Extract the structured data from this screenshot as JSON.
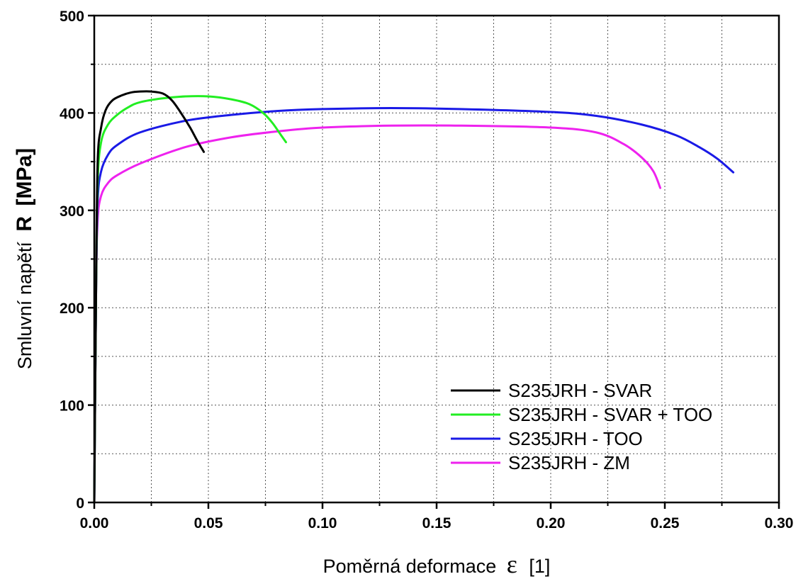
{
  "chart_data": {
    "type": "line",
    "xlabel": "Poměrná deformace",
    "xlabel_symbol": "ε",
    "xlabel_unit": "[1]",
    "ylabel": "Smluvní napětí",
    "ylabel_symbol": "R",
    "ylabel_unit": "[MPa]",
    "xlim": [
      0,
      0.3
    ],
    "ylim": [
      0,
      500
    ],
    "x_ticks": [
      "0.00",
      "0.05",
      "0.10",
      "0.15",
      "0.20",
      "0.25",
      "0.30"
    ],
    "y_ticks": [
      "0",
      "100",
      "200",
      "300",
      "400",
      "500"
    ],
    "grid": true,
    "legend_position": "bottom-right",
    "series": [
      {
        "name": "S235JRH - SVAR",
        "color": "#000000",
        "x": [
          0,
          0.0008,
          0.0015,
          0.003,
          0.005,
          0.008,
          0.012,
          0.016,
          0.02,
          0.025,
          0.03,
          0.034,
          0.038,
          0.042,
          0.045,
          0.048
        ],
        "y": [
          0,
          220,
          350,
          385,
          403,
          413,
          418,
          421,
          422,
          422,
          420,
          413,
          400,
          385,
          372,
          360
        ]
      },
      {
        "name": "S235JRH - SVAR + TOO",
        "color": "#22ee22",
        "x": [
          0,
          0.0008,
          0.0015,
          0.003,
          0.006,
          0.01,
          0.015,
          0.02,
          0.03,
          0.04,
          0.05,
          0.06,
          0.068,
          0.074,
          0.078,
          0.081,
          0.084
        ],
        "y": [
          0,
          220,
          330,
          370,
          388,
          398,
          406,
          411,
          415,
          417,
          417,
          414,
          409,
          400,
          390,
          380,
          370
        ]
      },
      {
        "name": "S235JRH - TOO",
        "color": "#1a1ae6",
        "x": [
          0,
          0.0008,
          0.0015,
          0.003,
          0.006,
          0.01,
          0.02,
          0.04,
          0.06,
          0.08,
          0.1,
          0.13,
          0.16,
          0.2,
          0.22,
          0.24,
          0.255,
          0.265,
          0.273,
          0.28
        ],
        "y": [
          0,
          220,
          310,
          340,
          357,
          367,
          380,
          392,
          398,
          402,
          404,
          405,
          404,
          401,
          397,
          388,
          377,
          365,
          353,
          339
        ]
      },
      {
        "name": "S235JRH - ZM",
        "color": "#ee22ee",
        "x": [
          0,
          0.0008,
          0.0015,
          0.003,
          0.006,
          0.01,
          0.02,
          0.04,
          0.06,
          0.08,
          0.1,
          0.13,
          0.16,
          0.2,
          0.22,
          0.232,
          0.24,
          0.245,
          0.248
        ],
        "y": [
          0,
          220,
          290,
          315,
          328,
          336,
          348,
          365,
          375,
          381,
          385,
          387,
          387,
          385,
          380,
          368,
          354,
          340,
          323
        ]
      }
    ]
  }
}
